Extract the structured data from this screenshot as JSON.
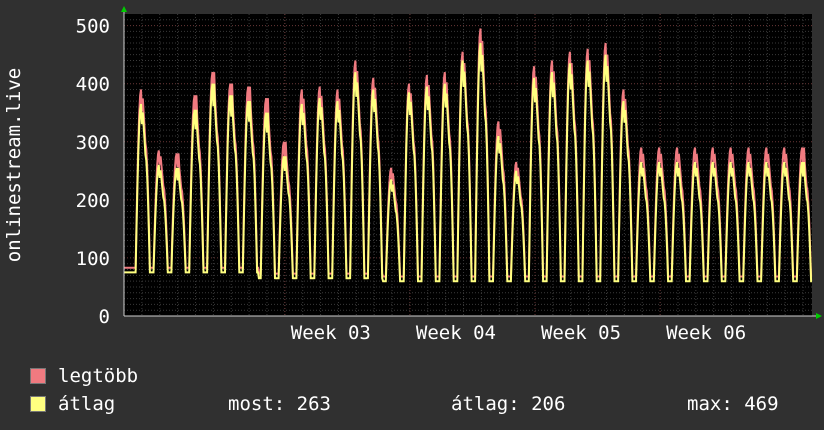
{
  "chart_data": {
    "type": "line",
    "ylabel": "onlinestream.live",
    "ylim": [
      0,
      520
    ],
    "yticks": [
      0,
      100,
      200,
      300,
      400,
      500
    ],
    "xlim": [
      0,
      38.5
    ],
    "xticks": [
      {
        "x": 9,
        "label": "Week 03"
      },
      {
        "x": 16,
        "label": "Week 04"
      },
      {
        "x": 23,
        "label": "Week 05"
      },
      {
        "x": 30,
        "label": "Week 06"
      }
    ],
    "grid": true,
    "background": "#000000",
    "series": [
      {
        "name": "legtöbb",
        "color": "#f07a80",
        "daily_max": [
          390,
          285,
          280,
          380,
          420,
          400,
          395,
          375,
          300,
          390,
          395,
          390,
          440,
          410,
          255,
          400,
          415,
          420,
          455,
          495,
          335,
          265,
          430,
          440,
          455,
          460,
          470,
          390,
          290
        ]
      },
      {
        "name": "átlag",
        "color": "#ffff80",
        "daily_max": [
          365,
          260,
          255,
          355,
          400,
          380,
          370,
          350,
          275,
          365,
          375,
          370,
          420,
          390,
          235,
          385,
          395,
          400,
          440,
          470,
          310,
          250,
          410,
          420,
          435,
          440,
          450,
          370,
          265
        ]
      }
    ],
    "day_start": 0.5,
    "day_min": [
      75,
      65,
      60,
      60
    ]
  },
  "legend": [
    {
      "label": "legtöbb",
      "color": "#f07a80"
    },
    {
      "label": "átlag",
      "color": "#ffff80"
    }
  ],
  "stats": {
    "now": "most: 263",
    "avg": "átlag: 206",
    "max": "max: 469"
  }
}
